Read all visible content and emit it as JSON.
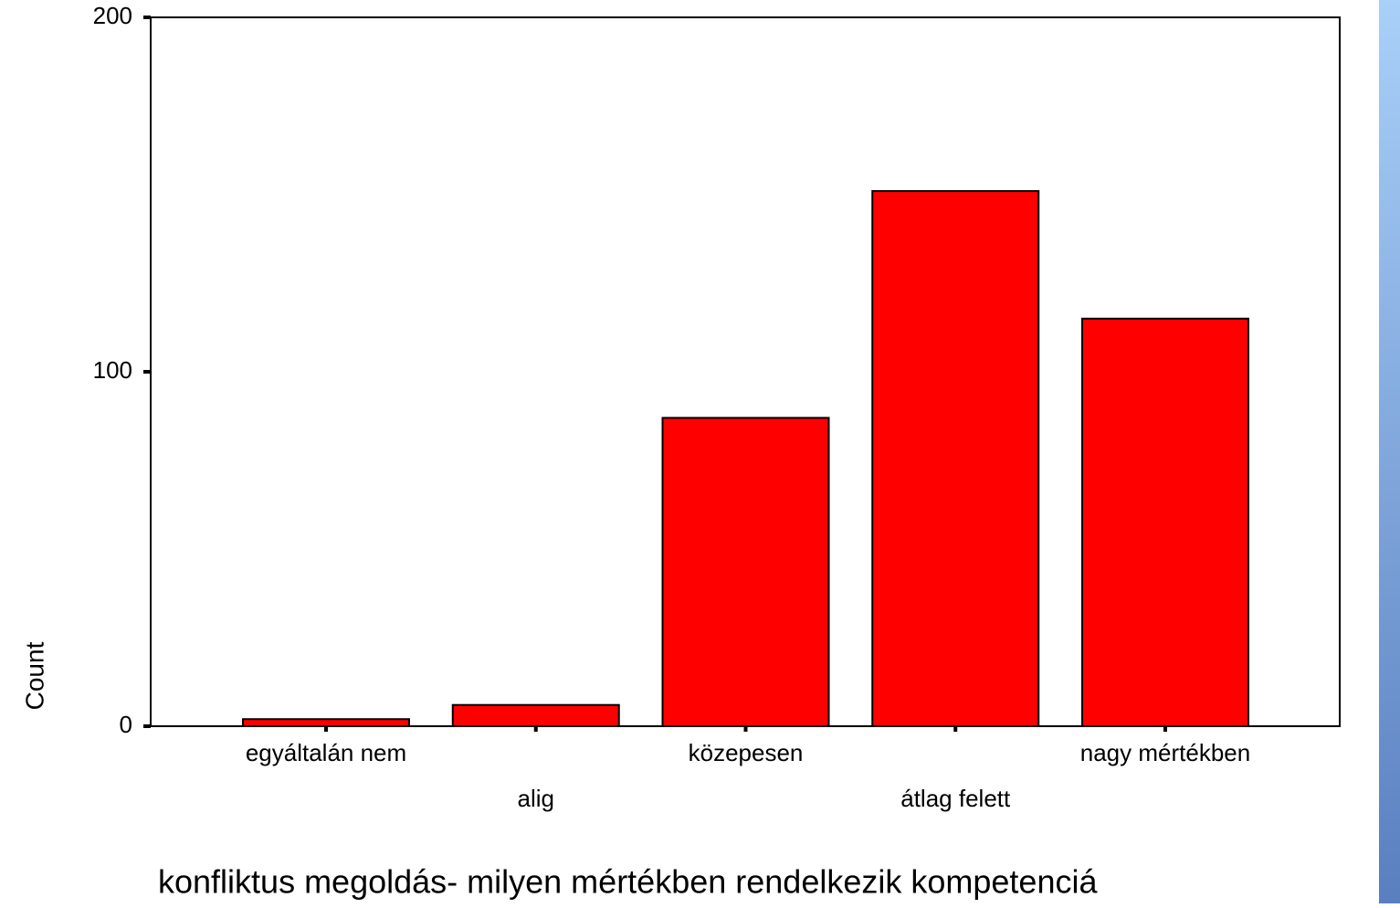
{
  "chart_data": {
    "type": "bar",
    "x_label": "konfliktus megoldás- milyen mértékben rendelkezik kompetenciá",
    "y_label": "Count",
    "categories": [
      "egyáltalán nem",
      "alig",
      "közepesen",
      "átlag felett",
      "nagy mértékben"
    ],
    "values": [
      2,
      6,
      87,
      151,
      115
    ],
    "color": "#ff0000",
    "ylim": [
      0,
      200
    ],
    "yticks": [
      0,
      100,
      200
    ],
    "grid": false
  }
}
